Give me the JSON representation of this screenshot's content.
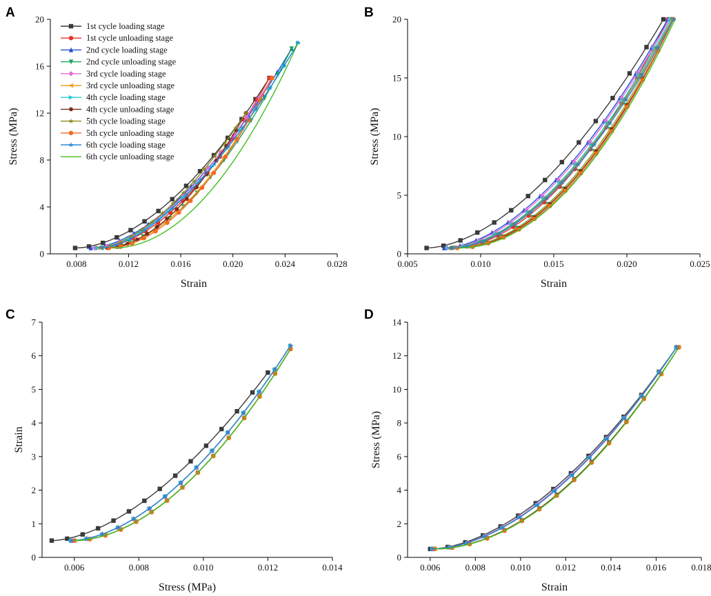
{
  "legend": [
    {
      "name": "1st cycle loading stage",
      "color": "#3a3a3a",
      "marker": "square"
    },
    {
      "name": "1st cycle unloading stage",
      "color": "#e8302a",
      "marker": "circle"
    },
    {
      "name": "2nd cycle loading stage",
      "color": "#1f4fd6",
      "marker": "triangle"
    },
    {
      "name": "2nd cycle unloading stage",
      "color": "#19a35b",
      "marker": "triangle-down"
    },
    {
      "name": "3rd cycle loading stage",
      "color": "#e36ad8",
      "marker": "diamond"
    },
    {
      "name": "3rd cycle unloading stage",
      "color": "#f0a020",
      "marker": "triangle-left"
    },
    {
      "name": "4th cycle loading stage",
      "color": "#22c9d9",
      "marker": "triangle-right"
    },
    {
      "name": "4th cycle unloading stage",
      "color": "#7a2b1a",
      "marker": "hexagon"
    },
    {
      "name": "5th cycle loading stage",
      "color": "#8a8a1a",
      "marker": "star"
    },
    {
      "name": "5th cycle unloading stage",
      "color": "#f26b21",
      "marker": "circle"
    },
    {
      "name": "6th cycle loading stage",
      "color": "#2a86d6",
      "marker": "star"
    },
    {
      "name": "6th cycle unloading stage",
      "color": "#3fbf1f",
      "marker": "none"
    }
  ],
  "chart_data": [
    {
      "panel": "A",
      "type": "line",
      "xlabel": "Strain",
      "ylabel": "Stress (MPa)",
      "xlim": [
        0.006,
        0.028
      ],
      "ylim": [
        0,
        20
      ],
      "xticks": [
        "0.008",
        "0.012",
        "0.016",
        "0.020",
        "0.024",
        "0.028"
      ],
      "yticks": [
        "0",
        "4",
        "8",
        "12",
        "16",
        "20"
      ],
      "series": [
        {
          "name": "1st cycle loading stage",
          "x0": 0.0079,
          "x1": 0.0228,
          "y0": 0.5,
          "y1": 15.0,
          "p": 1.8
        },
        {
          "name": "1st cycle unloading stage",
          "x0": 0.0095,
          "x1": 0.0228,
          "y0": 0.5,
          "y1": 15.0,
          "p": 1.85
        },
        {
          "name": "2nd cycle loading stage",
          "x0": 0.0091,
          "x1": 0.0245,
          "y0": 0.5,
          "y1": 17.5,
          "p": 1.7
        },
        {
          "name": "2nd cycle unloading stage",
          "x0": 0.01,
          "x1": 0.0245,
          "y0": 0.5,
          "y1": 17.5,
          "p": 1.85
        },
        {
          "name": "3rd cycle loading stage",
          "x0": 0.0094,
          "x1": 0.023,
          "y0": 0.5,
          "y1": 15.0,
          "p": 1.7
        },
        {
          "name": "3rd cycle unloading stage",
          "x0": 0.0102,
          "x1": 0.023,
          "y0": 0.5,
          "y1": 15.0,
          "p": 1.85
        },
        {
          "name": "4th cycle loading stage",
          "x0": 0.0096,
          "x1": 0.025,
          "y0": 0.5,
          "y1": 18.0,
          "p": 1.65
        },
        {
          "name": "4th cycle unloading stage",
          "x0": 0.0104,
          "x1": 0.021,
          "y0": 0.5,
          "y1": 12.0,
          "p": 1.8
        },
        {
          "name": "5th cycle loading stage",
          "x0": 0.0098,
          "x1": 0.021,
          "y0": 0.5,
          "y1": 12.0,
          "p": 1.6
        },
        {
          "name": "5th cycle unloading stage",
          "x0": 0.0105,
          "x1": 0.023,
          "y0": 0.5,
          "y1": 15.0,
          "p": 1.85
        },
        {
          "name": "6th cycle loading stage",
          "x0": 0.01,
          "x1": 0.025,
          "y0": 0.5,
          "y1": 18.0,
          "p": 1.6
        },
        {
          "name": "6th cycle unloading stage",
          "x0": 0.0108,
          "x1": 0.025,
          "y0": 0.5,
          "y1": 18.0,
          "p": 2.0
        }
      ]
    },
    {
      "panel": "B",
      "type": "line",
      "xlabel": "Strain",
      "ylabel": "Stress (MPa)",
      "xlim": [
        0.005,
        0.025
      ],
      "ylim": [
        0,
        20
      ],
      "xticks": [
        "0.005",
        "0.010",
        "0.015",
        "0.020",
        "0.025"
      ],
      "yticks": [
        "0",
        "5",
        "10",
        "15",
        "20"
      ],
      "series": [
        {
          "name": "1st cycle loading stage",
          "x0": 0.0063,
          "x1": 0.0225,
          "y0": 0.5,
          "y1": 20.0,
          "p": 1.75
        },
        {
          "name": "1st cycle unloading stage",
          "x0": 0.008,
          "x1": 0.0228,
          "y0": 0.5,
          "y1": 20.0,
          "p": 1.9
        },
        {
          "name": "2nd cycle loading stage",
          "x0": 0.0075,
          "x1": 0.0228,
          "y0": 0.5,
          "y1": 20.0,
          "p": 1.75
        },
        {
          "name": "2nd cycle unloading stage",
          "x0": 0.0082,
          "x1": 0.0231,
          "y0": 0.5,
          "y1": 20.0,
          "p": 1.95
        },
        {
          "name": "3rd cycle loading stage",
          "x0": 0.0077,
          "x1": 0.0229,
          "y0": 0.5,
          "y1": 20.0,
          "p": 1.75
        },
        {
          "name": "3rd cycle unloading stage",
          "x0": 0.0083,
          "x1": 0.0231,
          "y0": 0.5,
          "y1": 20.0,
          "p": 1.95
        },
        {
          "name": "4th cycle loading stage",
          "x0": 0.0078,
          "x1": 0.023,
          "y0": 0.5,
          "y1": 20.0,
          "p": 1.8
        },
        {
          "name": "4th cycle unloading stage",
          "x0": 0.0084,
          "x1": 0.0232,
          "y0": 0.5,
          "y1": 20.0,
          "p": 1.95
        },
        {
          "name": "5th cycle loading stage",
          "x0": 0.0079,
          "x1": 0.0231,
          "y0": 0.5,
          "y1": 20.0,
          "p": 1.8
        },
        {
          "name": "5th cycle unloading stage",
          "x0": 0.0084,
          "x1": 0.0232,
          "y0": 0.5,
          "y1": 20.0,
          "p": 2.0
        },
        {
          "name": "6th cycle loading stage",
          "x0": 0.008,
          "x1": 0.0232,
          "y0": 0.5,
          "y1": 20.0,
          "p": 1.8
        },
        {
          "name": "6th cycle unloading stage",
          "x0": 0.0085,
          "x1": 0.0233,
          "y0": 0.5,
          "y1": 20.0,
          "p": 2.0
        }
      ]
    },
    {
      "panel": "C",
      "type": "line",
      "xlabel": "Stress (MPa)",
      "ylabel": "Strain",
      "xlim": [
        0.005,
        0.014
      ],
      "ylim": [
        0,
        7
      ],
      "xticks": [
        "0.006",
        "0.008",
        "0.010",
        "0.012",
        "0.014"
      ],
      "yticks": [
        "0",
        "1",
        "2",
        "3",
        "4",
        "5",
        "6",
        "7"
      ],
      "series": [
        {
          "name": "1st cycle loading stage",
          "x0": 0.0053,
          "x1": 0.012,
          "y0": 0.5,
          "y1": 5.5,
          "p": 1.7
        },
        {
          "name": "1st cycle unloading stage",
          "x0": 0.006,
          "x1": 0.0127,
          "y0": 0.5,
          "y1": 6.2,
          "p": 1.85
        },
        {
          "name": "2nd cycle loading stage",
          "x0": 0.0059,
          "x1": 0.0127,
          "y0": 0.5,
          "y1": 6.3,
          "p": 1.75
        },
        {
          "name": "2nd cycle unloading stage",
          "x0": 0.006,
          "x1": 0.0127,
          "y0": 0.5,
          "y1": 6.2,
          "p": 1.85
        },
        {
          "name": "3rd cycle loading stage",
          "x0": 0.0059,
          "x1": 0.0127,
          "y0": 0.5,
          "y1": 6.3,
          "p": 1.75
        },
        {
          "name": "3rd cycle unloading stage",
          "x0": 0.006,
          "x1": 0.0127,
          "y0": 0.5,
          "y1": 6.2,
          "p": 1.85
        },
        {
          "name": "4th cycle loading stage",
          "x0": 0.0059,
          "x1": 0.0127,
          "y0": 0.5,
          "y1": 6.3,
          "p": 1.75
        },
        {
          "name": "4th cycle unloading stage",
          "x0": 0.006,
          "x1": 0.0127,
          "y0": 0.5,
          "y1": 6.2,
          "p": 1.85
        },
        {
          "name": "5th cycle loading stage",
          "x0": 0.0059,
          "x1": 0.0127,
          "y0": 0.5,
          "y1": 6.3,
          "p": 1.75
        },
        {
          "name": "5th cycle unloading stage",
          "x0": 0.006,
          "x1": 0.0127,
          "y0": 0.5,
          "y1": 6.2,
          "p": 1.85
        },
        {
          "name": "6th cycle loading stage",
          "x0": 0.0059,
          "x1": 0.0127,
          "y0": 0.5,
          "y1": 6.3,
          "p": 1.75
        },
        {
          "name": "6th cycle unloading stage",
          "x0": 0.006,
          "x1": 0.0127,
          "y0": 0.5,
          "y1": 6.2,
          "p": 1.85
        }
      ]
    },
    {
      "panel": "D",
      "type": "line",
      "xlabel": "Strain",
      "ylabel": "Stress (MPa)",
      "xlim": [
        0.005,
        0.018
      ],
      "ylim": [
        0,
        14
      ],
      "xticks": [
        "0.006",
        "0.008",
        "0.010",
        "0.012",
        "0.014",
        "0.016",
        "0.018"
      ],
      "yticks": [
        "0",
        "2",
        "4",
        "6",
        "8",
        "10",
        "12",
        "14"
      ],
      "series": [
        {
          "name": "1st cycle loading stage",
          "x0": 0.006,
          "x1": 0.0169,
          "y0": 0.5,
          "y1": 12.5,
          "p": 1.75
        },
        {
          "name": "1st cycle unloading stage",
          "x0": 0.0062,
          "x1": 0.017,
          "y0": 0.5,
          "y1": 12.5,
          "p": 1.9
        },
        {
          "name": "2nd cycle loading stage",
          "x0": 0.0061,
          "x1": 0.0169,
          "y0": 0.5,
          "y1": 12.5,
          "p": 1.78
        },
        {
          "name": "2nd cycle unloading stage",
          "x0": 0.0062,
          "x1": 0.017,
          "y0": 0.5,
          "y1": 12.5,
          "p": 1.9
        },
        {
          "name": "3rd cycle loading stage",
          "x0": 0.0061,
          "x1": 0.0169,
          "y0": 0.5,
          "y1": 12.5,
          "p": 1.78
        },
        {
          "name": "3rd cycle unloading stage",
          "x0": 0.0062,
          "x1": 0.017,
          "y0": 0.5,
          "y1": 12.5,
          "p": 1.9
        },
        {
          "name": "4th cycle loading stage",
          "x0": 0.0061,
          "x1": 0.0169,
          "y0": 0.5,
          "y1": 12.5,
          "p": 1.8
        },
        {
          "name": "4th cycle unloading stage",
          "x0": 0.0062,
          "x1": 0.017,
          "y0": 0.5,
          "y1": 12.5,
          "p": 1.9
        },
        {
          "name": "5th cycle loading stage",
          "x0": 0.0061,
          "x1": 0.0169,
          "y0": 0.5,
          "y1": 12.5,
          "p": 1.8
        },
        {
          "name": "5th cycle unloading stage",
          "x0": 0.0062,
          "x1": 0.017,
          "y0": 0.5,
          "y1": 12.5,
          "p": 1.92
        },
        {
          "name": "6th cycle loading stage",
          "x0": 0.0061,
          "x1": 0.0169,
          "y0": 0.5,
          "y1": 12.5,
          "p": 1.8
        },
        {
          "name": "6th cycle unloading stage",
          "x0": 0.0062,
          "x1": 0.017,
          "y0": 0.5,
          "y1": 12.5,
          "p": 1.92
        }
      ]
    }
  ]
}
